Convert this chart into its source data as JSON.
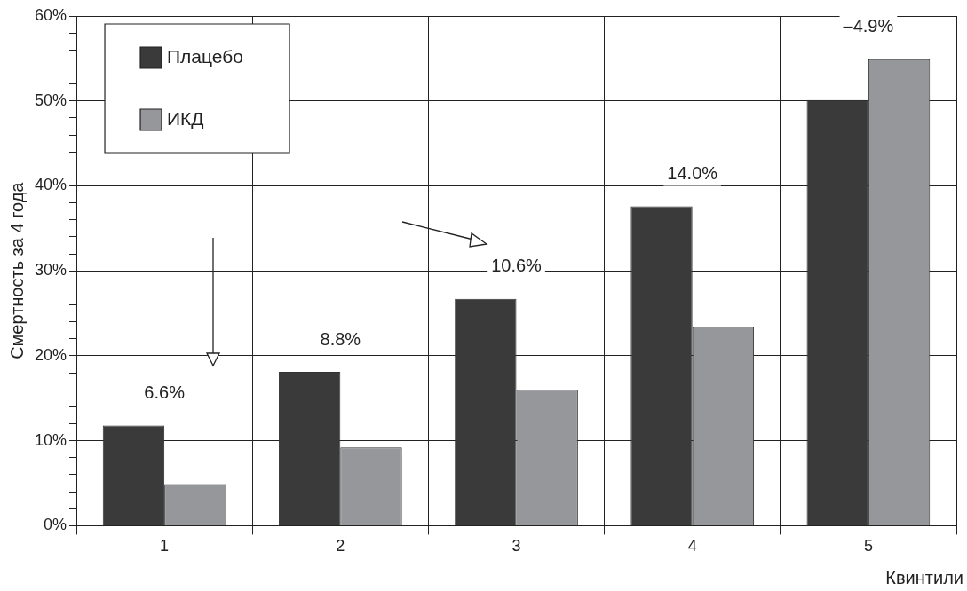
{
  "chart_data": {
    "type": "bar",
    "ylabel": "Смертность за 4 года",
    "xlabel": "Квинтили",
    "categories": [
      "1",
      "2",
      "3",
      "4",
      "5"
    ],
    "series": [
      {
        "name": "Плацебо",
        "color": "#3a3a3a",
        "values": [
          11.8,
          18.1,
          26.7,
          37.6,
          50.1
        ]
      },
      {
        "name": "ИКД",
        "color": "#96979b",
        "values": [
          4.9,
          9.2,
          16.0,
          23.4,
          54.9
        ]
      }
    ],
    "ylim": [
      0,
      60
    ],
    "yticks": [
      {
        "value": 0,
        "label": "0%"
      },
      {
        "value": 2,
        "label": null
      },
      {
        "value": 4,
        "label": null
      },
      {
        "value": 6,
        "label": null
      },
      {
        "value": 8,
        "label": null
      },
      {
        "value": 10,
        "label": "10%"
      },
      {
        "value": 12,
        "label": null
      },
      {
        "value": 14,
        "label": null
      },
      {
        "value": 16,
        "label": null
      },
      {
        "value": 18,
        "label": null
      },
      {
        "value": 20,
        "label": "20%"
      },
      {
        "value": 22,
        "label": null
      },
      {
        "value": 24,
        "label": null
      },
      {
        "value": 26,
        "label": null
      },
      {
        "value": 28,
        "label": null
      },
      {
        "value": 30,
        "label": "30%"
      },
      {
        "value": 32,
        "label": null
      },
      {
        "value": 34,
        "label": null
      },
      {
        "value": 36,
        "label": null
      },
      {
        "value": 38,
        "label": null
      },
      {
        "value": 40,
        "label": "40%"
      },
      {
        "value": 42,
        "label": null
      },
      {
        "value": 44,
        "label": null
      },
      {
        "value": 46,
        "label": null
      },
      {
        "value": 48,
        "label": null
      },
      {
        "value": 50,
        "label": "50%"
      },
      {
        "value": 52,
        "label": null
      },
      {
        "value": 54,
        "label": null
      },
      {
        "value": 56,
        "label": null
      },
      {
        "value": 58,
        "label": null
      },
      {
        "value": 60,
        "label": "60%"
      }
    ],
    "grid": true,
    "legend": "top left",
    "annotations": [
      "6.6%",
      "8.8%",
      "10.6%",
      "14.0%",
      "–4.9%"
    ]
  }
}
